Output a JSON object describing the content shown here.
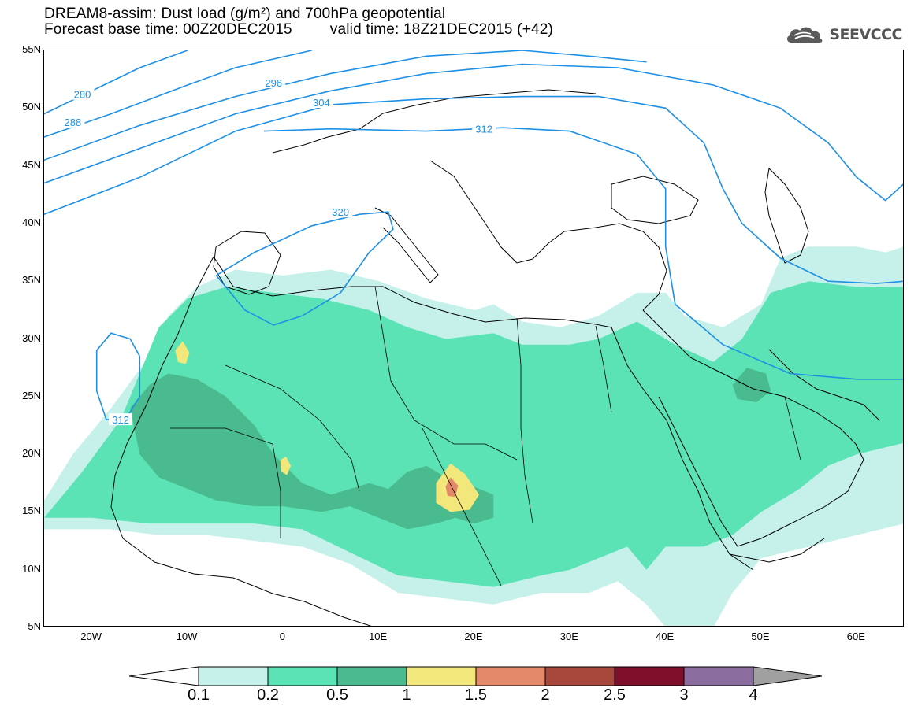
{
  "title": {
    "line1": "DREAM8-assim: Dust load (g/m²) and 700hPa geopotential",
    "base_time": "Forecast base time: 00Z20DEC2015",
    "valid_time": "valid time: 18Z21DEC2015 (+42)"
  },
  "logo": {
    "text": "SEEVCCC",
    "icon": "cloud-icon",
    "color": "#555555"
  },
  "map": {
    "projection": "cylindrical",
    "lon_range": [
      -25,
      65
    ],
    "lat_range": [
      5,
      55
    ],
    "lat_ticks": [
      {
        "value": 55,
        "label": "55N"
      },
      {
        "value": 50,
        "label": "50N"
      },
      {
        "value": 45,
        "label": "45N"
      },
      {
        "value": 40,
        "label": "40N"
      },
      {
        "value": 35,
        "label": "35N"
      },
      {
        "value": 30,
        "label": "30N"
      },
      {
        "value": 25,
        "label": "25N"
      },
      {
        "value": 20,
        "label": "20N"
      },
      {
        "value": 15,
        "label": "15N"
      },
      {
        "value": 10,
        "label": "10N"
      },
      {
        "value": 5,
        "label": "5N"
      }
    ],
    "lon_ticks": [
      {
        "value": -20,
        "label": "20W"
      },
      {
        "value": -10,
        "label": "10W"
      },
      {
        "value": 0,
        "label": "0"
      },
      {
        "value": 10,
        "label": "10E"
      },
      {
        "value": 20,
        "label": "20E"
      },
      {
        "value": 30,
        "label": "30E"
      },
      {
        "value": 40,
        "label": "40E"
      },
      {
        "value": 50,
        "label": "50E"
      },
      {
        "value": 60,
        "label": "60E"
      }
    ],
    "contour_color": "#1e90e6",
    "contours": [
      {
        "label": "280",
        "points": [
          [
            -25,
            49.5
          ],
          [
            -20,
            51.5
          ],
          [
            -15,
            53.5
          ],
          [
            -10,
            55
          ]
        ],
        "label_at": [
          -21,
          51.2
        ]
      },
      {
        "label": "288",
        "points": [
          [
            -25,
            47.5
          ],
          [
            -18,
            49.5
          ],
          [
            -10,
            52
          ],
          [
            -5,
            53.5
          ],
          [
            3,
            55
          ]
        ],
        "label_at": [
          -22,
          48.8
        ]
      },
      {
        "label": "",
        "points": [
          [
            -25,
            45.5
          ],
          [
            -15,
            48.5
          ],
          [
            -5,
            51
          ],
          [
            5,
            53
          ],
          [
            15,
            54.5
          ],
          [
            25,
            55
          ],
          [
            32,
            54.5
          ],
          [
            38,
            54
          ]
        ]
      },
      {
        "label": "296",
        "points": [
          [
            -25,
            43.5
          ],
          [
            -15,
            46.5
          ],
          [
            -5,
            49.5
          ],
          [
            5,
            51.5
          ],
          [
            15,
            53
          ],
          [
            25,
            53.8
          ],
          [
            35,
            53.5
          ],
          [
            45,
            52
          ],
          [
            52,
            50
          ],
          [
            57,
            47
          ],
          [
            60,
            44
          ],
          [
            63,
            42
          ],
          [
            65,
            43.5
          ]
        ],
        "label_at": [
          -1,
          52.2
        ]
      },
      {
        "label": "304",
        "points": [
          [
            -25,
            40.8
          ],
          [
            -15,
            44
          ],
          [
            -5,
            48
          ],
          [
            5,
            50.3
          ],
          [
            15,
            50.8
          ],
          [
            25,
            51
          ],
          [
            33,
            51
          ],
          [
            40,
            50
          ],
          [
            44,
            47
          ],
          [
            46,
            43
          ],
          [
            48,
            40
          ],
          [
            52,
            37
          ],
          [
            57,
            35
          ],
          [
            62,
            34.8
          ],
          [
            65,
            35
          ]
        ],
        "label_at": [
          4,
          50.5
        ]
      },
      {
        "label": "312",
        "points": [
          [
            -2,
            48
          ],
          [
            5,
            48.2
          ],
          [
            15,
            48
          ],
          [
            23,
            48.3
          ],
          [
            30,
            48
          ],
          [
            37,
            46
          ],
          [
            40,
            43
          ],
          [
            40,
            38
          ],
          [
            41,
            33
          ],
          [
            46,
            29.5
          ],
          [
            53,
            27
          ],
          [
            60,
            26.5
          ],
          [
            65,
            26.5
          ]
        ],
        "label_at": [
          21,
          48.2
        ]
      },
      {
        "label": "320",
        "points": [
          [
            -7,
            35.5
          ],
          [
            -3,
            37.5
          ],
          [
            3,
            39.8
          ],
          [
            8,
            40.8
          ],
          [
            11,
            41
          ],
          [
            11.5,
            39.5
          ],
          [
            9,
            37.5
          ],
          [
            6,
            34
          ],
          [
            2,
            32
          ],
          [
            -1,
            31.2
          ],
          [
            -4,
            32.5
          ],
          [
            -6,
            34.5
          ],
          [
            -7,
            35.5
          ]
        ],
        "label_at": [
          6,
          41
        ]
      },
      {
        "label": "312",
        "points": [
          [
            -15,
            28.5
          ],
          [
            -16,
            30
          ],
          [
            -18,
            30.5
          ],
          [
            -19.5,
            29
          ],
          [
            -19.5,
            25.5
          ],
          [
            -18.5,
            23
          ],
          [
            -16.5,
            23
          ],
          [
            -15,
            25
          ],
          [
            -15,
            28.5
          ]
        ],
        "label_at": [
          -17,
          23
        ]
      }
    ],
    "dust_shapes": [
      {
        "level": 1,
        "points": [
          [
            -25,
            16
          ],
          [
            -22,
            20
          ],
          [
            -18,
            24
          ],
          [
            -14,
            28.5
          ],
          [
            -12,
            32
          ],
          [
            -9,
            34.5
          ],
          [
            -5,
            36
          ],
          [
            0,
            35.5
          ],
          [
            5,
            36
          ],
          [
            10,
            35
          ],
          [
            15,
            33.5
          ],
          [
            20,
            32.5
          ],
          [
            22,
            33
          ],
          [
            25,
            31.5
          ],
          [
            29,
            31
          ],
          [
            33,
            32
          ],
          [
            35,
            33
          ],
          [
            37,
            34
          ],
          [
            40,
            34
          ],
          [
            42,
            32
          ],
          [
            46,
            31
          ],
          [
            50,
            33
          ],
          [
            52,
            37
          ],
          [
            55,
            38
          ],
          [
            60,
            38
          ],
          [
            63,
            37.5
          ],
          [
            65,
            38
          ],
          [
            65,
            14
          ],
          [
            60,
            13
          ],
          [
            55,
            12
          ],
          [
            50,
            11
          ],
          [
            47,
            8
          ],
          [
            45,
            5
          ],
          [
            40,
            5
          ],
          [
            38,
            7
          ],
          [
            35,
            9
          ],
          [
            32,
            8
          ],
          [
            27,
            8
          ],
          [
            22,
            7
          ],
          [
            17,
            7.5
          ],
          [
            12,
            8
          ],
          [
            7,
            10.5
          ],
          [
            2,
            12
          ],
          [
            -3,
            12.5
          ],
          [
            -8,
            13
          ],
          [
            -13,
            13
          ],
          [
            -18,
            13.5
          ],
          [
            -25,
            13.5
          ]
        ]
      },
      {
        "level": 2,
        "points": [
          [
            -25,
            14.5
          ],
          [
            -21,
            18.5
          ],
          [
            -17,
            23
          ],
          [
            -15,
            27
          ],
          [
            -13,
            31
          ],
          [
            -10,
            33.5
          ],
          [
            -6,
            34.5
          ],
          [
            -1,
            34
          ],
          [
            4,
            33.5
          ],
          [
            9,
            32.5
          ],
          [
            13,
            31
          ],
          [
            17,
            30
          ],
          [
            22,
            30.5
          ],
          [
            25,
            29.5
          ],
          [
            30,
            29.5
          ],
          [
            33,
            30
          ],
          [
            37,
            31.5
          ],
          [
            41,
            29.5
          ],
          [
            45,
            28
          ],
          [
            48,
            30
          ],
          [
            51,
            34
          ],
          [
            55,
            35
          ],
          [
            60,
            34.5
          ],
          [
            65,
            34.5
          ],
          [
            65,
            21
          ],
          [
            60,
            20
          ],
          [
            57,
            19
          ],
          [
            54,
            17
          ],
          [
            50,
            15
          ],
          [
            47,
            13
          ],
          [
            44,
            12
          ],
          [
            40,
            12
          ],
          [
            38,
            10
          ],
          [
            36,
            12
          ],
          [
            33,
            11
          ],
          [
            30,
            10
          ],
          [
            27,
            9.5
          ],
          [
            22,
            8.5
          ],
          [
            17,
            9
          ],
          [
            12,
            9.5
          ],
          [
            7,
            11.5
          ],
          [
            2,
            13.5
          ],
          [
            -3,
            14
          ],
          [
            -8,
            14
          ],
          [
            -14,
            14
          ],
          [
            -20,
            14.5
          ],
          [
            -25,
            14.5
          ]
        ]
      },
      {
        "level": 3,
        "points": [
          [
            -16,
            24
          ],
          [
            -14,
            26
          ],
          [
            -12,
            27
          ],
          [
            -9,
            26.5
          ],
          [
            -6,
            25
          ],
          [
            -3,
            22.5
          ],
          [
            -1,
            20
          ],
          [
            2,
            17.5
          ],
          [
            5,
            16.5
          ],
          [
            7,
            17
          ],
          [
            9,
            17.5
          ],
          [
            11,
            17
          ],
          [
            13,
            18.5
          ],
          [
            15,
            19
          ],
          [
            17,
            18
          ],
          [
            19,
            17.5
          ],
          [
            22,
            16.5
          ],
          [
            22,
            14.5
          ],
          [
            20,
            14
          ],
          [
            18,
            14.5
          ],
          [
            16,
            14
          ],
          [
            13,
            13.5
          ],
          [
            10,
            14.5
          ],
          [
            7,
            15.5
          ],
          [
            4,
            15
          ],
          [
            0,
            15.5
          ],
          [
            -3,
            15.5
          ],
          [
            -7,
            16
          ],
          [
            -10,
            17
          ],
          [
            -13,
            18
          ],
          [
            -15,
            20
          ],
          [
            -16,
            24
          ]
        ]
      },
      {
        "level": 3,
        "points": [
          [
            47,
            26
          ],
          [
            48.5,
            27.5
          ],
          [
            50.5,
            27
          ],
          [
            51,
            25.5
          ],
          [
            49.5,
            24.5
          ],
          [
            47.5,
            24.8
          ]
        ]
      },
      {
        "level": 4,
        "points": [
          [
            -11.3,
            29
          ],
          [
            -10.5,
            29.8
          ],
          [
            -9.8,
            28.8
          ],
          [
            -10.2,
            27.8
          ],
          [
            -11,
            28
          ]
        ]
      },
      {
        "level": 4,
        "points": [
          [
            -0.3,
            19.5
          ],
          [
            0.3,
            19.8
          ],
          [
            0.8,
            19
          ],
          [
            0.4,
            18.2
          ],
          [
            -0.2,
            18.5
          ]
        ]
      },
      {
        "level": 4,
        "points": [
          [
            16,
            17.5
          ],
          [
            17.5,
            19.2
          ],
          [
            19,
            18.3
          ],
          [
            20.5,
            16.5
          ],
          [
            19.5,
            15.2
          ],
          [
            17.5,
            15
          ],
          [
            16,
            15.8
          ]
        ]
      },
      {
        "level": 5,
        "points": [
          [
            17,
            17.2
          ],
          [
            17.5,
            18
          ],
          [
            18.3,
            17.3
          ],
          [
            18,
            16.3
          ],
          [
            17.2,
            16.4
          ]
        ]
      }
    ],
    "coast_color": "#000000"
  },
  "colorbar": {
    "colors": [
      "#c6f1ea",
      "#5be3b5",
      "#4aba8f",
      "#f2e77b",
      "#e5896b",
      "#a8473c",
      "#7e0e2a",
      "#8b6c9f",
      "#a0a0a0"
    ],
    "under_color": "#ffffff",
    "labels": [
      "0.1",
      "0.2",
      "0.5",
      "1",
      "1.5",
      "2",
      "2.5",
      "3",
      "4"
    ]
  }
}
